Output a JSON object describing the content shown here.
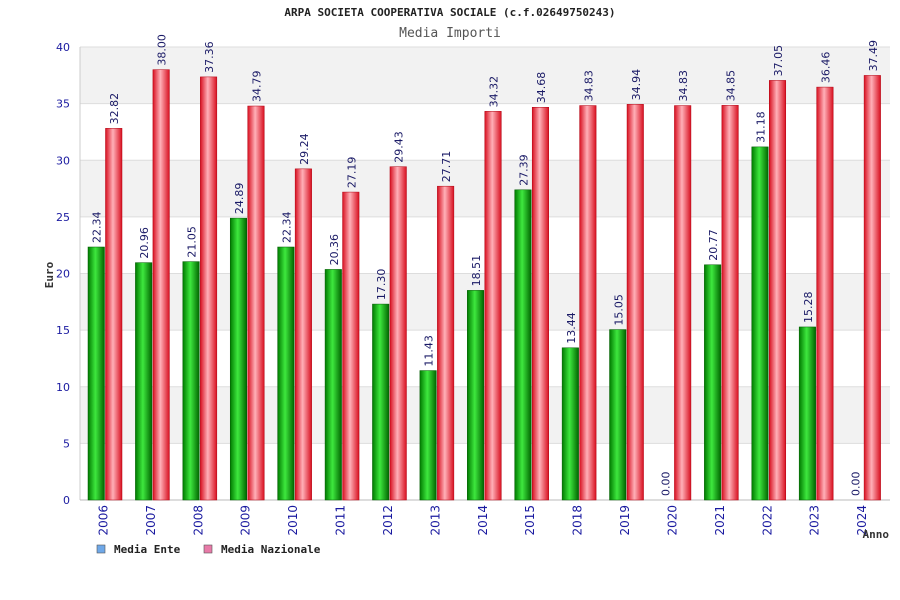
{
  "chart_data": {
    "type": "bar",
    "title": "ARPA SOCIETA COOPERATIVA SOCIALE (c.f.02649750243)",
    "subtitle": "Media Importi",
    "xlabel": "Anno",
    "ylabel": "Euro",
    "ylim": [
      0,
      40
    ],
    "yticks": [
      0,
      5,
      10,
      15,
      20,
      25,
      30,
      35,
      40
    ],
    "categories": [
      "2006",
      "2007",
      "2008",
      "2009",
      "2010",
      "2011",
      "2012",
      "2013",
      "2014",
      "2015",
      "2018",
      "2019",
      "2020",
      "2021",
      "2022",
      "2023",
      "2024"
    ],
    "series": [
      {
        "name": "Media Ente",
        "values": [
          22.34,
          20.96,
          21.05,
          24.89,
          22.34,
          20.36,
          17.3,
          11.43,
          18.51,
          27.39,
          13.44,
          15.05,
          0.0,
          20.77,
          31.18,
          15.28,
          0.0
        ],
        "labels": [
          "22.34",
          "20.96",
          "21.05",
          "24.89",
          "22.34",
          "20.36",
          "17.30",
          "11.43",
          "18.51",
          "27.39",
          "13.44",
          "15.05",
          "0.00",
          "20.77",
          "31.18",
          "15.28",
          "0.00"
        ],
        "color": "#00a000",
        "legend_color": "#6fa8e8"
      },
      {
        "name": "Media Nazionale",
        "values": [
          32.82,
          38.0,
          37.36,
          34.79,
          29.24,
          27.19,
          29.43,
          27.71,
          34.32,
          34.68,
          34.83,
          34.94,
          34.83,
          34.85,
          37.05,
          36.46,
          37.49
        ],
        "labels": [
          "32.82",
          "38.00",
          "37.36",
          "34.79",
          "29.24",
          "27.19",
          "29.43",
          "27.71",
          "34.32",
          "34.68",
          "34.83",
          "34.94",
          "34.83",
          "34.85",
          "37.05",
          "36.46",
          "37.49"
        ],
        "color": "#e8202e",
        "legend_color": "#e87aa8"
      }
    ],
    "grid": true,
    "legend_position": "bottom-left"
  }
}
